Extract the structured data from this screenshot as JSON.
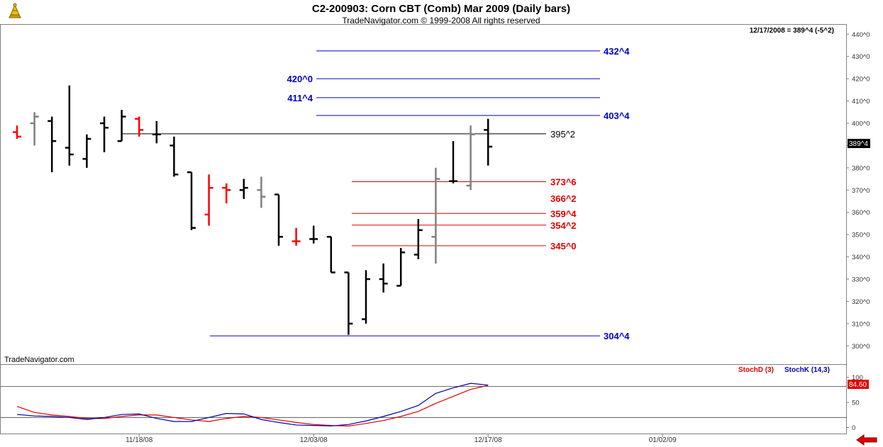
{
  "header": {
    "title": "C2-200903:  Corn CBT (Comb) Mar 2009  (Daily bars)",
    "subtitle": "TradeNavigator.com © 1999-2008 All rights reserved",
    "quote": "12/17/2008 = 389^4 (-5^2)",
    "watermark": "TradeNavigator.com",
    "logo": "trade-navigator-logo-icon"
  },
  "colors": {
    "up_bar": "#000000",
    "down_bar": "#ff0000",
    "neutral_bar": "#808080",
    "tick_green": "#00cc00",
    "blue_level": "#0000cc",
    "red_level": "#e00000",
    "stochD": "#e00000",
    "stochK": "#0000aa"
  },
  "chart_data": [
    {
      "type": "ohlc",
      "panel": "price",
      "ylim": [
        295,
        442
      ],
      "y_ticks": [
        "300^0",
        "310^0",
        "320^0",
        "330^0",
        "340^0",
        "350^0",
        "360^0",
        "370^0",
        "380^0",
        "390^0",
        "400^0",
        "410^0",
        "420^0",
        "430^0",
        "440^0"
      ],
      "x_ticks": [
        {
          "label": "11/18/08",
          "index": 7
        },
        {
          "label": "12/03/08",
          "index": 17
        },
        {
          "label": "12/17/08",
          "index": 27
        },
        {
          "label": "01/02/09",
          "index": 37
        }
      ],
      "last_value_label": "389^4",
      "bars": [
        {
          "o": 396,
          "h": 399,
          "l": 393,
          "c": 394,
          "color": "down"
        },
        {
          "o": 400,
          "h": 405,
          "l": 390,
          "c": 403,
          "color": "neutral"
        },
        {
          "o": 401,
          "h": 403,
          "l": 378,
          "c": 392,
          "color": "up"
        },
        {
          "o": 389,
          "h": 417,
          "l": 381,
          "c": 386,
          "color": "up"
        },
        {
          "o": 384,
          "h": 395,
          "l": 380,
          "c": 393,
          "color": "up"
        },
        {
          "o": 400,
          "h": 403,
          "l": 387,
          "c": 398,
          "color": "up"
        },
        {
          "o": 392,
          "h": 406,
          "l": 392,
          "c": 403,
          "color": "up"
        },
        {
          "o": 402,
          "h": 403,
          "l": 394,
          "c": 397,
          "color": "down"
        },
        {
          "o": 395,
          "h": 401,
          "l": 391,
          "c": 395,
          "color": "up"
        },
        {
          "o": 390,
          "h": 394,
          "l": 376,
          "c": 377,
          "color": "up"
        },
        {
          "o": 378,
          "h": 378,
          "l": 352,
          "c": 353,
          "color": "up"
        },
        {
          "o": 359,
          "h": 377,
          "l": 354,
          "c": 371,
          "color": "down"
        },
        {
          "o": 371,
          "h": 373,
          "l": 364,
          "c": 370,
          "color": "down"
        },
        {
          "o": 370,
          "h": 375,
          "l": 366,
          "c": 371,
          "color": "up"
        },
        {
          "o": 370,
          "h": 376,
          "l": 362,
          "c": 367,
          "color": "neutral"
        },
        {
          "o": 368,
          "h": 368,
          "l": 345,
          "c": 349,
          "color": "up"
        },
        {
          "o": 347,
          "h": 353,
          "l": 345,
          "c": 347,
          "color": "down"
        },
        {
          "o": 348,
          "h": 354,
          "l": 346,
          "c": 348,
          "color": "up"
        },
        {
          "o": 349,
          "h": 349,
          "l": 333,
          "c": 333,
          "color": "up"
        },
        {
          "o": 333,
          "h": 333,
          "l": 305,
          "c": 310,
          "color": "up"
        },
        {
          "o": 312,
          "h": 334,
          "l": 310,
          "c": 330,
          "color": "up"
        },
        {
          "o": 330,
          "h": 337,
          "l": 324,
          "c": 328,
          "color": "up"
        },
        {
          "o": 327,
          "h": 344,
          "l": 327,
          "c": 342,
          "color": "up"
        },
        {
          "o": 341,
          "h": 357,
          "l": 339,
          "c": 352,
          "color": "up"
        },
        {
          "o": 349,
          "h": 380,
          "l": 337,
          "c": 375,
          "color": "neutral"
        },
        {
          "o": 374,
          "h": 392,
          "l": 373,
          "c": 374,
          "color": "up"
        },
        {
          "o": 372,
          "h": 399,
          "l": 370,
          "c": 395,
          "color": "neutral"
        },
        {
          "o": 397,
          "h": 402,
          "l": 381,
          "c": 389.5,
          "color": "up"
        }
      ],
      "levels": [
        {
          "label": "432^4",
          "value": 432.5,
          "color": "blue"
        },
        {
          "label": "420^0",
          "value": 420,
          "color": "blue"
        },
        {
          "label": "411^4",
          "value": 411.5,
          "color": "blue"
        },
        {
          "label": "403^4",
          "value": 403.5,
          "color": "blue"
        },
        {
          "label": "395^2",
          "value": 395.25,
          "color": "black"
        },
        {
          "label": "373^6",
          "value": 373.75,
          "color": "red"
        },
        {
          "label": "366^2",
          "value": 366.25,
          "color": "red"
        },
        {
          "label": "359^4",
          "value": 359.5,
          "color": "red"
        },
        {
          "label": "354^2",
          "value": 354.25,
          "color": "red"
        },
        {
          "label": "345^0",
          "value": 345,
          "color": "red"
        },
        {
          "label": "304^4",
          "value": 304.5,
          "color": "blue"
        }
      ]
    },
    {
      "type": "line",
      "panel": "stochastic",
      "ylim": [
        -5,
        108
      ],
      "y_ticks": [
        "0",
        "50",
        "100"
      ],
      "reference_lines": [
        82,
        20
      ],
      "series": [
        {
          "name": "StochD (3)",
          "values": [
            42,
            30,
            25,
            22,
            18,
            18,
            22,
            25,
            25,
            20,
            15,
            12,
            18,
            22,
            20,
            15,
            10,
            6,
            4,
            3,
            8,
            14,
            22,
            32,
            48,
            62,
            76,
            84
          ]
        },
        {
          "name": "StochK (14,3)",
          "values": [
            26,
            23,
            22,
            20,
            16,
            20,
            26,
            27,
            18,
            12,
            12,
            20,
            28,
            27,
            16,
            10,
            5,
            4,
            3,
            6,
            13,
            22,
            32,
            44,
            68,
            79,
            88,
            84.6
          ]
        }
      ],
      "last_value_label": "84.60"
    }
  ]
}
